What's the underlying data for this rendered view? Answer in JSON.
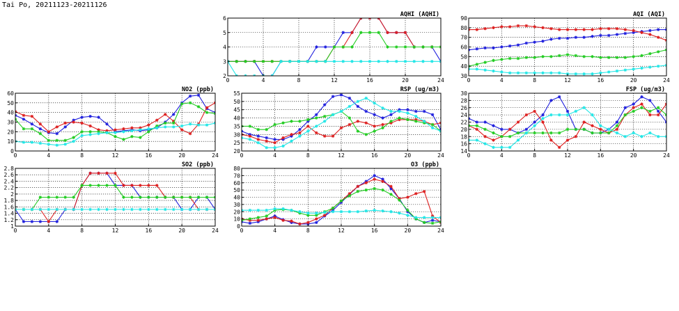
{
  "page": {
    "title": "Tai Po, 20211123-20211126"
  },
  "colors": {
    "blue": "#1f1fdd",
    "red": "#dd1f1f",
    "green": "#22cc22",
    "cyan": "#22e6e6"
  },
  "chart_data": [
    {
      "id": "aqhi",
      "type": "line",
      "title": "AQHI (AQHI)",
      "xlim": [
        0,
        24
      ],
      "ylim": [
        2,
        6
      ],
      "xticks": [
        0,
        4,
        8,
        12,
        16,
        20,
        24
      ],
      "yticks": [
        2,
        3,
        4,
        5,
        6
      ],
      "grid": true,
      "series": [
        {
          "color": "blue",
          "values": [
            3,
            3,
            3,
            3,
            2,
            2,
            3,
            3,
            3,
            3,
            4,
            4,
            4,
            5,
            5,
            6,
            6,
            6,
            5,
            5,
            5,
            4,
            4,
            4,
            3
          ]
        },
        {
          "color": "red",
          "values": [
            3,
            3,
            3,
            3,
            3,
            3,
            3,
            3,
            3,
            3,
            3,
            3,
            4,
            4,
            5,
            6,
            6,
            6,
            5,
            5,
            5,
            4,
            4,
            4,
            4
          ]
        },
        {
          "color": "green",
          "values": [
            3,
            3,
            3,
            3,
            3,
            3,
            3,
            3,
            3,
            3,
            3,
            3,
            4,
            4,
            4,
            5,
            5,
            5,
            4,
            4,
            4,
            4,
            4,
            4,
            4
          ]
        },
        {
          "color": "cyan",
          "values": [
            3,
            2,
            2,
            2,
            2,
            2,
            3,
            3,
            3,
            3,
            3,
            3,
            3,
            3,
            3,
            3,
            3,
            3,
            3,
            3,
            3,
            3,
            3,
            3,
            3
          ]
        }
      ]
    },
    {
      "id": "aqi",
      "type": "line",
      "title": "AQI (AQI)",
      "xlim": [
        0,
        24
      ],
      "ylim": [
        30,
        90
      ],
      "xticks": [
        0,
        4,
        8,
        12,
        16,
        20,
        24
      ],
      "yticks": [
        30,
        40,
        50,
        60,
        70,
        80,
        90
      ],
      "grid": true,
      "series": [
        {
          "color": "blue",
          "values": [
            57,
            58,
            59,
            59,
            60,
            61,
            62,
            64,
            65,
            66,
            68,
            69,
            69,
            70,
            70,
            71,
            72,
            72,
            73,
            74,
            75,
            76,
            77,
            78,
            78
          ]
        },
        {
          "color": "red",
          "values": [
            78,
            78,
            79,
            80,
            81,
            81,
            82,
            82,
            81,
            80,
            79,
            78,
            78,
            78,
            78,
            78,
            79,
            79,
            79,
            78,
            77,
            75,
            73,
            70,
            67
          ]
        },
        {
          "color": "green",
          "values": [
            40,
            42,
            44,
            46,
            47,
            48,
            48,
            49,
            49,
            50,
            50,
            51,
            52,
            51,
            50,
            50,
            49,
            49,
            49,
            49,
            50,
            51,
            53,
            55,
            57
          ]
        },
        {
          "color": "cyan",
          "values": [
            37,
            37,
            36,
            35,
            34,
            33,
            33,
            33,
            33,
            33,
            33,
            33,
            32,
            32,
            32,
            32,
            33,
            34,
            35,
            36,
            37,
            38,
            39,
            40,
            41
          ]
        }
      ]
    },
    {
      "id": "no2",
      "type": "line",
      "title": "NO2 (ppb)",
      "xlim": [
        0,
        24
      ],
      "ylim": [
        0,
        60
      ],
      "xticks": [
        0,
        4,
        8,
        12,
        16,
        20,
        24
      ],
      "yticks": [
        0,
        10,
        20,
        30,
        40,
        50,
        60
      ],
      "grid": true,
      "series": [
        {
          "color": "blue",
          "values": [
            37,
            33,
            28,
            23,
            19,
            18,
            25,
            32,
            35,
            36,
            35,
            28,
            20,
            21,
            22,
            21,
            22,
            24,
            30,
            38,
            50,
            57,
            58,
            44,
            40
          ]
        },
        {
          "color": "red",
          "values": [
            41,
            37,
            36,
            28,
            20,
            25,
            29,
            30,
            29,
            26,
            22,
            21,
            22,
            23,
            24,
            24,
            27,
            32,
            38,
            31,
            22,
            18,
            28,
            45,
            50
          ]
        },
        {
          "color": "green",
          "values": [
            33,
            23,
            23,
            18,
            11,
            11,
            11,
            14,
            20,
            20,
            20,
            19,
            15,
            12,
            15,
            14,
            20,
            26,
            29,
            29,
            49,
            50,
            46,
            40,
            39
          ]
        },
        {
          "color": "cyan",
          "values": [
            10,
            9,
            9,
            8,
            7,
            6,
            7,
            10,
            16,
            17,
            18,
            19,
            19,
            20,
            21,
            22,
            23,
            24,
            25,
            25,
            26,
            28,
            27,
            27,
            29
          ]
        }
      ]
    },
    {
      "id": "rsp",
      "type": "line",
      "title": "RSP (ug/m3)",
      "xlim": [
        0,
        24
      ],
      "ylim": [
        20,
        55
      ],
      "xticks": [
        0,
        4,
        8,
        12,
        16,
        20,
        24
      ],
      "yticks": [
        20,
        25,
        30,
        35,
        40,
        45,
        50,
        55
      ],
      "grid": true,
      "series": [
        {
          "color": "blue",
          "values": [
            32,
            30,
            29,
            28,
            27,
            27,
            29,
            33,
            38,
            42,
            48,
            53,
            54,
            52,
            47,
            44,
            42,
            40,
            42,
            45,
            45,
            44,
            44,
            42,
            33
          ]
        },
        {
          "color": "red",
          "values": [
            30,
            29,
            27,
            26,
            25,
            28,
            30,
            31,
            35,
            31,
            29,
            29,
            34,
            36,
            38,
            37,
            35,
            36,
            37,
            39,
            39,
            39,
            38,
            36,
            37
          ]
        },
        {
          "color": "green",
          "values": [
            35,
            35,
            33,
            33,
            36,
            37,
            38,
            38,
            39,
            40,
            41,
            42,
            44,
            40,
            32,
            30,
            32,
            34,
            38,
            40,
            39,
            38,
            37,
            36,
            32
          ]
        },
        {
          "color": "cyan",
          "values": [
            28,
            27,
            25,
            22,
            22,
            23,
            26,
            29,
            32,
            35,
            38,
            42,
            44,
            47,
            50,
            52,
            49,
            46,
            44,
            44,
            43,
            41,
            38,
            34,
            32
          ]
        }
      ]
    },
    {
      "id": "fsp",
      "type": "line",
      "title": "FSP (ug/m3)",
      "xlim": [
        0,
        24
      ],
      "ylim": [
        14,
        30
      ],
      "xticks": [
        0,
        4,
        8,
        12,
        16,
        20,
        24
      ],
      "yticks": [
        14,
        16,
        18,
        20,
        22,
        24,
        26,
        28,
        30
      ],
      "grid": true,
      "series": [
        {
          "color": "blue",
          "values": [
            23,
            22,
            22,
            21,
            20,
            20,
            19,
            20,
            22,
            24,
            28,
            29,
            25,
            20,
            20,
            19,
            19,
            20,
            22,
            26,
            27,
            29,
            28,
            25,
            22
          ]
        },
        {
          "color": "red",
          "values": [
            21,
            20,
            18,
            17,
            18,
            20,
            22,
            24,
            25,
            22,
            17,
            15,
            17,
            18,
            22,
            21,
            20,
            19,
            20,
            24,
            26,
            27,
            24,
            24,
            27
          ]
        },
        {
          "color": "green",
          "values": [
            21,
            21,
            20,
            19,
            18,
            18,
            19,
            19,
            19,
            19,
            19,
            19,
            20,
            20,
            20,
            19,
            19,
            19,
            21,
            24,
            25,
            26,
            25,
            26,
            24
          ]
        },
        {
          "color": "cyan",
          "values": [
            17,
            17,
            16,
            15,
            15,
            15,
            17,
            19,
            21,
            23,
            24,
            24,
            24,
            25,
            26,
            24,
            21,
            20,
            19,
            18,
            19,
            18,
            19,
            18,
            18
          ]
        }
      ]
    },
    {
      "id": "so2",
      "type": "line",
      "title": "SO2 (ppb)",
      "xlim": [
        0,
        24
      ],
      "ylim": [
        1.0,
        2.8
      ],
      "xticks": [
        0,
        4,
        8,
        12,
        16,
        20,
        24
      ],
      "yticks": [
        1.0,
        1.2,
        1.4,
        1.6,
        1.8,
        2.0,
        2.2,
        2.4,
        2.6,
        2.8
      ],
      "grid": true,
      "series": [
        {
          "color": "blue",
          "values": [
            1.52,
            1.14,
            1.14,
            1.14,
            1.14,
            1.14,
            1.52,
            1.52,
            2.27,
            2.65,
            2.65,
            2.65,
            2.27,
            2.27,
            2.27,
            1.9,
            1.9,
            1.9,
            1.9,
            1.9,
            1.52,
            1.52,
            1.9,
            1.9,
            1.52
          ]
        },
        {
          "color": "red",
          "values": [
            1.52,
            1.52,
            1.52,
            1.52,
            1.14,
            1.52,
            1.52,
            1.52,
            2.27,
            2.65,
            2.65,
            2.65,
            2.65,
            2.27,
            2.27,
            2.27,
            2.27,
            2.27,
            1.9,
            1.9,
            1.9,
            1.9,
            1.52,
            1.52,
            1.52
          ]
        },
        {
          "color": "green",
          "values": [
            1.52,
            1.52,
            1.52,
            1.9,
            1.9,
            1.9,
            1.9,
            1.9,
            2.27,
            2.27,
            2.27,
            2.27,
            2.27,
            1.9,
            1.9,
            1.9,
            1.9,
            1.9,
            1.9,
            1.9,
            1.9,
            1.9,
            1.9,
            1.9,
            1.9
          ]
        },
        {
          "color": "cyan",
          "values": [
            1.52,
            1.52,
            1.52,
            1.52,
            1.52,
            1.52,
            1.52,
            1.52,
            1.52,
            1.52,
            1.52,
            1.52,
            1.52,
            1.52,
            1.52,
            1.52,
            1.52,
            1.52,
            1.52,
            1.52,
            1.52,
            1.52,
            1.52,
            1.52,
            1.52
          ]
        }
      ]
    },
    {
      "id": "o3",
      "type": "line",
      "title": "O3 (ppb)",
      "xlim": [
        0,
        24
      ],
      "ylim": [
        0,
        80
      ],
      "xticks": [
        0,
        4,
        8,
        12,
        16,
        20,
        24
      ],
      "yticks": [
        0,
        10,
        20,
        30,
        40,
        50,
        60,
        70,
        80
      ],
      "grid": true,
      "series": [
        {
          "color": "blue",
          "values": [
            6,
            4,
            6,
            10,
            14,
            9,
            5,
            3,
            3,
            5,
            14,
            22,
            33,
            44,
            55,
            62,
            70,
            65,
            52,
            38,
            20,
            10,
            5,
            8,
            6
          ]
        },
        {
          "color": "red",
          "values": [
            10,
            8,
            8,
            10,
            12,
            8,
            7,
            3,
            5,
            10,
            15,
            25,
            35,
            45,
            55,
            60,
            65,
            62,
            55,
            38,
            40,
            45,
            48,
            14,
            5
          ]
        },
        {
          "color": "green",
          "values": [
            8,
            10,
            12,
            14,
            22,
            23,
            22,
            18,
            15,
            15,
            20,
            25,
            35,
            42,
            48,
            50,
            52,
            50,
            44,
            36,
            22,
            10,
            5,
            4,
            6
          ]
        },
        {
          "color": "cyan",
          "values": [
            22,
            22,
            22,
            22,
            24,
            24,
            22,
            20,
            18,
            18,
            19,
            20,
            20,
            20,
            20,
            21,
            22,
            21,
            20,
            18,
            15,
            12,
            12,
            12,
            12
          ]
        }
      ]
    }
  ]
}
